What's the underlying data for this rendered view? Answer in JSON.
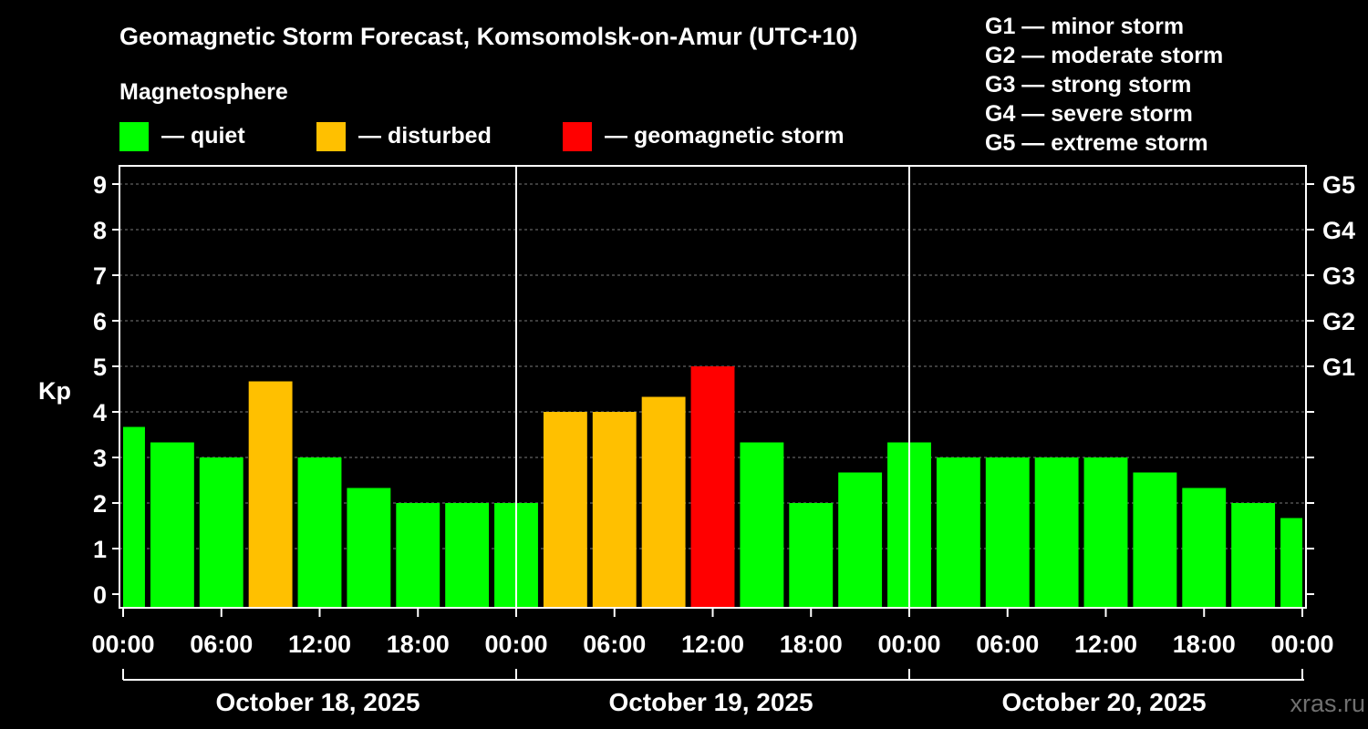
{
  "title": "Geomagnetic Storm Forecast, Komsomolsk-on-Amur (UTC+10)",
  "legend": {
    "heading": "Magnetosphere",
    "items": [
      {
        "label": "— quiet",
        "color": "#00ff00"
      },
      {
        "label": "— disturbed",
        "color": "#ffc000"
      },
      {
        "label": "— geomagnetic storm",
        "color": "#ff0000"
      }
    ]
  },
  "storm_scale": [
    "G1 — minor storm",
    "G2 — moderate storm",
    "G3 — strong storm",
    "G4 — severe storm",
    "G5 — extreme storm"
  ],
  "watermark": "xras.ru",
  "chart_data": {
    "type": "bar",
    "ylabel": "Kp",
    "ylim": [
      0,
      9
    ],
    "yticks": [
      "0",
      "1",
      "2",
      "3",
      "4",
      "5",
      "6",
      "7",
      "8",
      "9"
    ],
    "right_axis_labels": [
      {
        "value": 5,
        "label": "G1"
      },
      {
        "value": 6,
        "label": "G2"
      },
      {
        "value": 7,
        "label": "G3"
      },
      {
        "value": 8,
        "label": "G4"
      },
      {
        "value": 9,
        "label": "G5"
      }
    ],
    "xtick_labels": [
      "00:00",
      "06:00",
      "12:00",
      "18:00",
      "00:00",
      "06:00",
      "12:00",
      "18:00",
      "00:00",
      "06:00",
      "12:00",
      "18:00",
      "00:00"
    ],
    "days": [
      "October 18, 2025",
      "October 19, 2025",
      "October 20, 2025"
    ],
    "grid": true,
    "bars": [
      {
        "start_hour": 0,
        "value": 3.67,
        "level": "disturbed_no",
        "color": "#00ff00"
      },
      {
        "start_hour": 3,
        "value": 3.33,
        "color": "#00ff00"
      },
      {
        "start_hour": 6,
        "value": 3.0,
        "color": "#00ff00"
      },
      {
        "start_hour": 9,
        "value": 4.67,
        "color": "#ffc000"
      },
      {
        "start_hour": 12,
        "value": 3.0,
        "color": "#00ff00"
      },
      {
        "start_hour": 15,
        "value": 2.33,
        "color": "#00ff00"
      },
      {
        "start_hour": 18,
        "value": 2.0,
        "color": "#00ff00"
      },
      {
        "start_hour": 21,
        "value": 2.0,
        "color": "#00ff00"
      },
      {
        "start_hour": 24,
        "value": 2.0,
        "color": "#00ff00"
      },
      {
        "start_hour": 27,
        "value": 4.0,
        "color": "#ffc000"
      },
      {
        "start_hour": 30,
        "value": 4.0,
        "color": "#ffc000"
      },
      {
        "start_hour": 33,
        "value": 4.33,
        "color": "#ffc000"
      },
      {
        "start_hour": 36,
        "value": 5.0,
        "color": "#ff0000"
      },
      {
        "start_hour": 39,
        "value": 3.33,
        "color": "#00ff00"
      },
      {
        "start_hour": 42,
        "value": 2.0,
        "color": "#00ff00"
      },
      {
        "start_hour": 45,
        "value": 2.67,
        "color": "#00ff00"
      },
      {
        "start_hour": 48,
        "value": 3.33,
        "color": "#00ff00"
      },
      {
        "start_hour": 51,
        "value": 3.0,
        "color": "#00ff00"
      },
      {
        "start_hour": 54,
        "value": 3.0,
        "color": "#00ff00"
      },
      {
        "start_hour": 57,
        "value": 3.0,
        "color": "#00ff00"
      },
      {
        "start_hour": 60,
        "value": 3.0,
        "color": "#00ff00"
      },
      {
        "start_hour": 63,
        "value": 2.67,
        "color": "#00ff00"
      },
      {
        "start_hour": 66,
        "value": 2.33,
        "color": "#00ff00"
      },
      {
        "start_hour": 69,
        "value": 2.0,
        "color": "#00ff00"
      },
      {
        "start_hour": 72,
        "value": 1.67,
        "color": "#00ff00"
      }
    ]
  }
}
